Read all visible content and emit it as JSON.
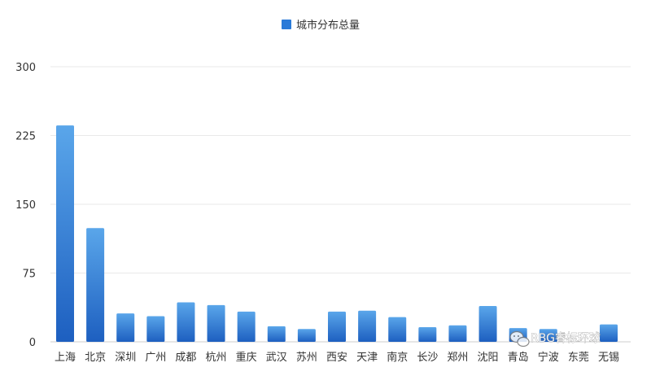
{
  "chart_data": {
    "type": "bar",
    "legend": {
      "label": "城市分布总量",
      "position": "top-center"
    },
    "categories": [
      "上海",
      "北京",
      "深圳",
      "广州",
      "成都",
      "杭州",
      "重庆",
      "武汉",
      "苏州",
      "西安",
      "天津",
      "南京",
      "长沙",
      "郑州",
      "沈阳",
      "青岛",
      "宁波",
      "东莞",
      "无锡"
    ],
    "series": [
      {
        "name": "城市分布总量",
        "values": [
          236,
          124,
          31,
          28,
          43,
          40,
          33,
          17,
          14,
          33,
          34,
          27,
          16,
          18,
          39,
          15,
          14,
          0,
          19
        ]
      }
    ],
    "ylim": [
      0,
      300
    ],
    "yticks": [
      0,
      75,
      150,
      225,
      300
    ],
    "grid": true,
    "colors": {
      "bar_top": "#5aa6ea",
      "bar_bottom": "#1d5fc0",
      "legend_swatch": "#2a7ad8"
    }
  },
  "watermark": {
    "text": "RBG睿标环球"
  }
}
